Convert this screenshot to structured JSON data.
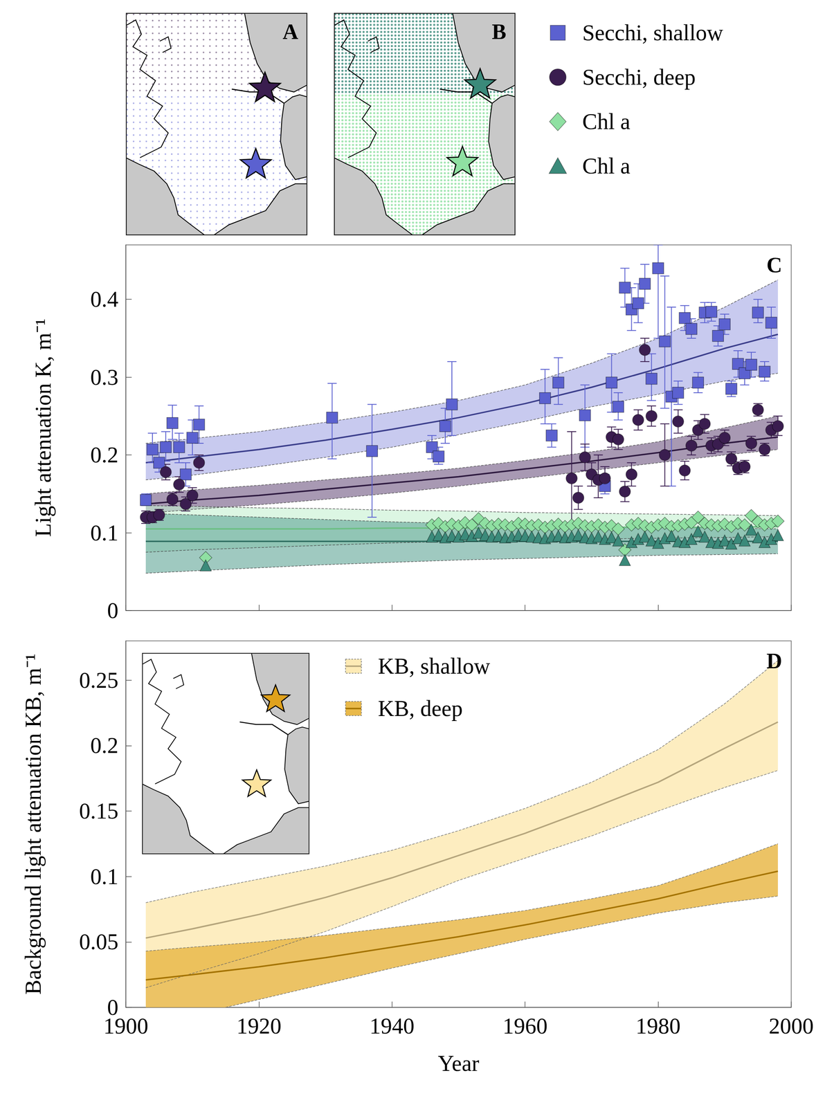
{
  "chart_data": [
    {
      "type": "scatter",
      "panel": "C",
      "y_label": "Light attenuation K, m⁻¹",
      "xlim": [
        1900,
        2000
      ],
      "xticks": [
        1900,
        1920,
        1940,
        1960,
        1980,
        2000
      ],
      "ylim": [
        0,
        0.47
      ],
      "yticks": [
        0,
        0.1,
        0.2,
        0.3,
        0.4
      ],
      "grid": false,
      "tick_labels": "y",
      "series": [
        {
          "name": "Secchi, shallow",
          "color": "#5b61d0",
          "marker": "square",
          "x": [
            1903,
            1904,
            1905,
            1906,
            1907,
            1908,
            1909,
            1910,
            1911,
            1931,
            1937,
            1946,
            1947,
            1948,
            1949,
            1963,
            1964,
            1965,
            1969,
            1972,
            1973,
            1974,
            1975,
            1976,
            1977,
            1978,
            1979,
            1980,
            1981,
            1982,
            1983,
            1984,
            1985,
            1986,
            1987,
            1988,
            1989,
            1990,
            1991,
            1992,
            1993,
            1994,
            1995,
            1996,
            1997
          ],
          "values": [
            0.142,
            0.207,
            0.19,
            0.21,
            0.241,
            0.21,
            0.175,
            0.222,
            0.239,
            0.248,
            0.205,
            0.21,
            0.198,
            0.237,
            0.265,
            0.273,
            0.225,
            0.293,
            0.251,
            0.16,
            0.293,
            0.262,
            0.415,
            0.387,
            0.395,
            0.42,
            0.298,
            0.44,
            0.346,
            0.275,
            0.28,
            0.376,
            0.362,
            0.293,
            0.383,
            0.384,
            0.353,
            0.368,
            0.285,
            0.317,
            0.305,
            0.316,
            0.383,
            0.307,
            0.37
          ],
          "error_low": [
            0.135,
            0.19,
            0.178,
            0.192,
            0.22,
            0.19,
            0.16,
            0.2,
            0.215,
            0.195,
            0.12,
            0.195,
            0.188,
            0.215,
            0.225,
            0.24,
            0.21,
            0.265,
            0.21,
            0.15,
            0.255,
            0.245,
            0.39,
            0.36,
            0.37,
            0.395,
            0.27,
            0.35,
            0.26,
            0.16,
            0.265,
            0.36,
            0.35,
            0.28,
            0.37,
            0.372,
            0.34,
            0.355,
            0.275,
            0.3,
            0.29,
            0.3,
            0.37,
            0.295,
            0.35
          ],
          "error_high": [
            0.15,
            0.228,
            0.203,
            0.23,
            0.264,
            0.228,
            0.19,
            0.245,
            0.263,
            0.292,
            0.265,
            0.225,
            0.21,
            0.26,
            0.32,
            0.31,
            0.24,
            0.325,
            0.29,
            0.175,
            0.33,
            0.28,
            0.44,
            0.415,
            0.42,
            0.445,
            0.33,
            0.47,
            0.43,
            0.39,
            0.295,
            0.392,
            0.375,
            0.306,
            0.396,
            0.396,
            0.366,
            0.381,
            0.295,
            0.334,
            0.32,
            0.332,
            0.4,
            0.32,
            0.39
          ],
          "fit": {
            "color": "#3c3f8c",
            "band_color": "#a4a7e4",
            "x": [
              1903,
              1910,
              1920,
              1930,
              1940,
              1950,
              1960,
              1970,
              1980,
              1990,
              1998
            ],
            "values": [
              0.19,
              0.197,
              0.207,
              0.219,
              0.233,
              0.248,
              0.266,
              0.287,
              0.311,
              0.337,
              0.355
            ],
            "lower": [
              0.168,
              0.174,
              0.185,
              0.197,
              0.21,
              0.226,
              0.243,
              0.262,
              0.278,
              0.295,
              0.305
            ],
            "upper": [
              0.215,
              0.221,
              0.23,
              0.242,
              0.255,
              0.27,
              0.29,
              0.318,
              0.35,
              0.39,
              0.425
            ]
          }
        },
        {
          "name": "Secchi, deep",
          "color": "#3a1d4f",
          "marker": "circle",
          "x": [
            1903,
            1904,
            1905,
            1906,
            1907,
            1908,
            1909,
            1910,
            1911,
            1967,
            1968,
            1969,
            1970,
            1971,
            1972,
            1973,
            1974,
            1975,
            1976,
            1977,
            1978,
            1979,
            1981,
            1983,
            1984,
            1985,
            1986,
            1987,
            1988,
            1989,
            1990,
            1991,
            1992,
            1993,
            1994,
            1995,
            1996,
            1997,
            1998
          ],
          "values": [
            0.12,
            0.12,
            0.123,
            0.178,
            0.143,
            0.162,
            0.137,
            0.148,
            0.19,
            0.17,
            0.145,
            0.197,
            0.175,
            0.168,
            0.17,
            0.223,
            0.22,
            0.153,
            0.175,
            0.245,
            0.335,
            0.25,
            0.2,
            0.243,
            0.18,
            0.212,
            0.232,
            0.24,
            0.212,
            0.214,
            0.222,
            0.195,
            0.183,
            0.185,
            0.215,
            0.258,
            0.207,
            0.232,
            0.237
          ],
          "error_low": [
            0.112,
            0.113,
            0.116,
            0.168,
            0.135,
            0.152,
            0.128,
            0.138,
            0.18,
            0.11,
            0.13,
            0.18,
            0.16,
            0.145,
            0.155,
            0.21,
            0.207,
            0.14,
            0.16,
            0.232,
            0.32,
            0.237,
            0.16,
            0.228,
            0.168,
            0.2,
            0.22,
            0.228,
            0.202,
            0.204,
            0.212,
            0.186,
            0.175,
            0.177,
            0.206,
            0.25,
            0.199,
            0.222,
            0.225
          ],
          "error_high": [
            0.128,
            0.127,
            0.13,
            0.188,
            0.151,
            0.172,
            0.146,
            0.158,
            0.2,
            0.23,
            0.16,
            0.214,
            0.19,
            0.2,
            0.185,
            0.236,
            0.233,
            0.166,
            0.19,
            0.258,
            0.35,
            0.263,
            0.24,
            0.258,
            0.192,
            0.224,
            0.244,
            0.252,
            0.222,
            0.224,
            0.232,
            0.204,
            0.191,
            0.193,
            0.224,
            0.266,
            0.215,
            0.242,
            0.25
          ],
          "fit": {
            "color": "#2e1a40",
            "band_color": "#6e5580",
            "x": [
              1903,
              1910,
              1920,
              1930,
              1940,
              1950,
              1960,
              1970,
              1980,
              1990,
              1998
            ],
            "values": [
              0.137,
              0.142,
              0.148,
              0.156,
              0.164,
              0.172,
              0.182,
              0.192,
              0.203,
              0.215,
              0.223
            ],
            "lower": [
              0.125,
              0.13,
              0.136,
              0.143,
              0.151,
              0.16,
              0.17,
              0.18,
              0.19,
              0.2,
              0.207
            ],
            "upper": [
              0.15,
              0.155,
              0.161,
              0.168,
              0.175,
              0.183,
              0.193,
              0.204,
              0.217,
              0.235,
              0.25
            ]
          }
        },
        {
          "name": "Chl a",
          "color": "#8fe0a2",
          "marker": "diamond",
          "x": [
            1912,
            1946,
            1947,
            1948,
            1949,
            1950,
            1951,
            1952,
            1953,
            1954,
            1955,
            1956,
            1957,
            1958,
            1959,
            1960,
            1961,
            1962,
            1963,
            1964,
            1965,
            1966,
            1967,
            1968,
            1969,
            1970,
            1971,
            1972,
            1973,
            1974,
            1975,
            1976,
            1977,
            1978,
            1979,
            1980,
            1981,
            1982,
            1983,
            1984,
            1985,
            1986,
            1987,
            1988,
            1989,
            1990,
            1991,
            1992,
            1993,
            1994,
            1995,
            1996,
            1997,
            1998
          ],
          "values": [
            0.068,
            0.11,
            0.112,
            0.108,
            0.111,
            0.109,
            0.113,
            0.11,
            0.118,
            0.112,
            0.109,
            0.111,
            0.11,
            0.108,
            0.112,
            0.111,
            0.109,
            0.11,
            0.107,
            0.109,
            0.111,
            0.108,
            0.11,
            0.112,
            0.109,
            0.108,
            0.11,
            0.107,
            0.109,
            0.105,
            0.078,
            0.11,
            0.112,
            0.109,
            0.107,
            0.11,
            0.112,
            0.108,
            0.109,
            0.111,
            0.113,
            0.12,
            0.112,
            0.11,
            0.109,
            0.111,
            0.108,
            0.112,
            0.11,
            0.122,
            0.114,
            0.11,
            0.112,
            0.115
          ],
          "fit": {
            "color": "#6cbf84",
            "band_color": "#c5f0d0",
            "x": [
              1903,
              1910,
              1920,
              1930,
              1940,
              1950,
              1960,
              1970,
              1980,
              1990,
              1998
            ],
            "values": [
              0.105,
              0.105,
              0.105,
              0.105,
              0.106,
              0.106,
              0.106,
              0.107,
              0.107,
              0.107,
              0.108
            ],
            "lower": [
              0.075,
              0.078,
              0.081,
              0.084,
              0.087,
              0.089,
              0.091,
              0.092,
              0.093,
              0.094,
              0.095
            ],
            "upper": [
              0.135,
              0.134,
              0.132,
              0.131,
              0.129,
              0.128,
              0.126,
              0.125,
              0.124,
              0.123,
              0.122
            ]
          }
        },
        {
          "name": "Chl a",
          "color": "#3b8a7a",
          "marker": "triangle",
          "x": [
            1912,
            1946,
            1947,
            1948,
            1949,
            1950,
            1951,
            1952,
            1953,
            1954,
            1955,
            1956,
            1957,
            1958,
            1959,
            1960,
            1961,
            1962,
            1963,
            1964,
            1965,
            1966,
            1967,
            1968,
            1969,
            1970,
            1971,
            1972,
            1973,
            1974,
            1975,
            1976,
            1977,
            1978,
            1979,
            1980,
            1981,
            1982,
            1983,
            1984,
            1985,
            1986,
            1987,
            1988,
            1989,
            1990,
            1991,
            1992,
            1993,
            1994,
            1995,
            1996,
            1997,
            1998
          ],
          "values": [
            0.058,
            0.095,
            0.097,
            0.094,
            0.096,
            0.095,
            0.098,
            0.096,
            0.1,
            0.097,
            0.095,
            0.096,
            0.094,
            0.095,
            0.097,
            0.096,
            0.095,
            0.094,
            0.093,
            0.095,
            0.096,
            0.094,
            0.095,
            0.097,
            0.094,
            0.093,
            0.095,
            0.092,
            0.094,
            0.09,
            0.065,
            0.088,
            0.092,
            0.095,
            0.09,
            0.087,
            0.093,
            0.096,
            0.089,
            0.088,
            0.092,
            0.102,
            0.095,
            0.088,
            0.087,
            0.09,
            0.086,
            0.093,
            0.09,
            0.104,
            0.094,
            0.088,
            0.092,
            0.097
          ],
          "fit": {
            "color": "#2f6f62",
            "band_color": "#5fa596",
            "x": [
              1903,
              1910,
              1920,
              1930,
              1940,
              1950,
              1960,
              1970,
              1980,
              1990,
              1998
            ],
            "values": [
              0.089,
              0.089,
              0.089,
              0.089,
              0.089,
              0.089,
              0.089,
              0.089,
              0.089,
              0.089,
              0.089
            ],
            "lower": [
              0.048,
              0.051,
              0.055,
              0.059,
              0.062,
              0.065,
              0.067,
              0.069,
              0.071,
              0.072,
              0.073
            ],
            "upper": [
              0.125,
              0.123,
              0.12,
              0.117,
              0.114,
              0.112,
              0.11,
              0.108,
              0.107,
              0.106,
              0.105
            ]
          }
        }
      ]
    },
    {
      "type": "line",
      "panel": "D",
      "x_label": "Year",
      "y_label": "Background light attenuation KB, m⁻¹",
      "xlim": [
        1900,
        2000
      ],
      "xticks": [
        1900,
        1920,
        1940,
        1960,
        1980,
        2000
      ],
      "ylim": [
        0,
        0.28
      ],
      "yticks": [
        0,
        0.05,
        0.1,
        0.15,
        0.2,
        0.25
      ],
      "grid": false,
      "tick_labels": true,
      "inset_map": {
        "colors": [
          "#e0a21c",
          "#fde39e"
        ]
      },
      "series": [
        {
          "name": "KB, shallow",
          "color": "#b5a57c",
          "band_color": "#fdeab5",
          "x": [
            1903,
            1910,
            1920,
            1930,
            1940,
            1950,
            1960,
            1970,
            1980,
            1990,
            1998
          ],
          "values": [
            0.053,
            0.06,
            0.071,
            0.084,
            0.099,
            0.116,
            0.133,
            0.152,
            0.172,
            0.198,
            0.218
          ],
          "lower": [
            0.015,
            0.026,
            0.041,
            0.058,
            0.077,
            0.097,
            0.114,
            0.131,
            0.15,
            0.168,
            0.181
          ],
          "upper": [
            0.08,
            0.088,
            0.098,
            0.108,
            0.12,
            0.135,
            0.152,
            0.172,
            0.197,
            0.232,
            0.265
          ]
        },
        {
          "name": "KB, deep",
          "color": "#a47300",
          "band_color": "#e9b94a",
          "x": [
            1903,
            1910,
            1920,
            1930,
            1940,
            1950,
            1960,
            1970,
            1980,
            1990,
            1998
          ],
          "values": [
            0.021,
            0.025,
            0.031,
            0.038,
            0.046,
            0.054,
            0.063,
            0.073,
            0.083,
            0.095,
            0.104
          ],
          "lower": [
            -0.015,
            -0.006,
            0.006,
            0.018,
            0.03,
            0.041,
            0.052,
            0.062,
            0.072,
            0.08,
            0.085
          ],
          "upper": [
            0.043,
            0.046,
            0.05,
            0.055,
            0.061,
            0.067,
            0.074,
            0.083,
            0.093,
            0.11,
            0.125
          ]
        }
      ]
    }
  ],
  "maps": [
    {
      "label": "A",
      "colors": [
        "#3a1d4f",
        "#5b61d0"
      ]
    },
    {
      "label": "B",
      "colors": [
        "#3b8a7a",
        "#8fe0a2"
      ]
    }
  ]
}
